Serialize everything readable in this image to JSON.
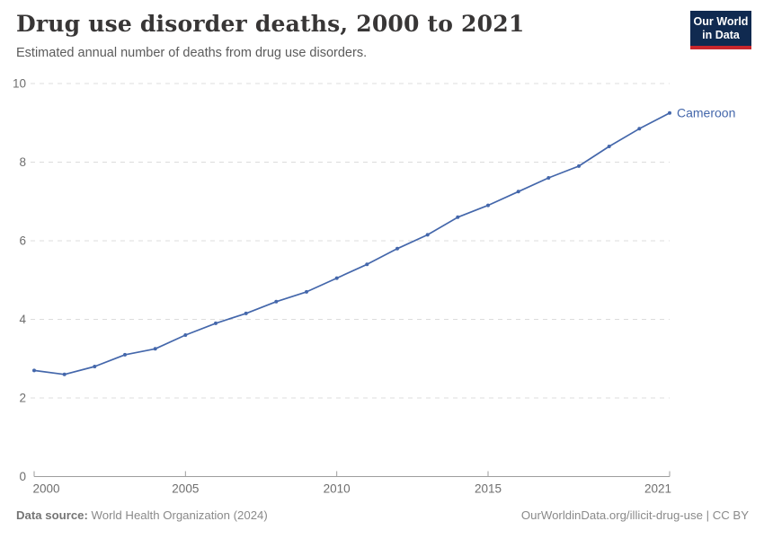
{
  "header": {
    "title": "Drug use disorder deaths, 2000 to 2021",
    "subtitle": "Estimated annual number of deaths from drug use disorders.",
    "logo": {
      "line1": "Our World",
      "line2": "in Data",
      "bg_color": "#102a50",
      "accent_color": "#c9262c"
    }
  },
  "chart_data": {
    "type": "line",
    "title": "Drug use disorder deaths, 2000 to 2021",
    "x": [
      2000,
      2001,
      2002,
      2003,
      2004,
      2005,
      2006,
      2007,
      2008,
      2009,
      2010,
      2011,
      2012,
      2013,
      2014,
      2015,
      2016,
      2017,
      2018,
      2019,
      2020,
      2021
    ],
    "series": [
      {
        "name": "Cameroon",
        "color": "#4467ab",
        "values": [
          2.7,
          2.6,
          2.8,
          3.1,
          3.25,
          3.6,
          3.9,
          4.15,
          4.45,
          4.7,
          5.05,
          5.4,
          5.8,
          6.15,
          6.6,
          6.9,
          7.25,
          7.6,
          7.9,
          8.4,
          8.85,
          9.25
        ]
      }
    ],
    "xlabel": "",
    "ylabel": "",
    "ylim": [
      0,
      10
    ],
    "xlim": [
      2000,
      2021
    ],
    "yticks": [
      0,
      2,
      4,
      6,
      8,
      10
    ],
    "xticks": [
      2000,
      2005,
      2010,
      2015,
      2021
    ],
    "grid": "horizontal-dashed",
    "grid_color": "#dcdcdc",
    "axis_color": "#9e9e9e",
    "tick_label_color": "#6e6e6e",
    "legend": "end-of-line-label"
  },
  "footer": {
    "source_label": "Data source:",
    "source_value": " World Health Organization (2024)",
    "rights": "OurWorldinData.org/illicit-drug-use | CC BY"
  }
}
